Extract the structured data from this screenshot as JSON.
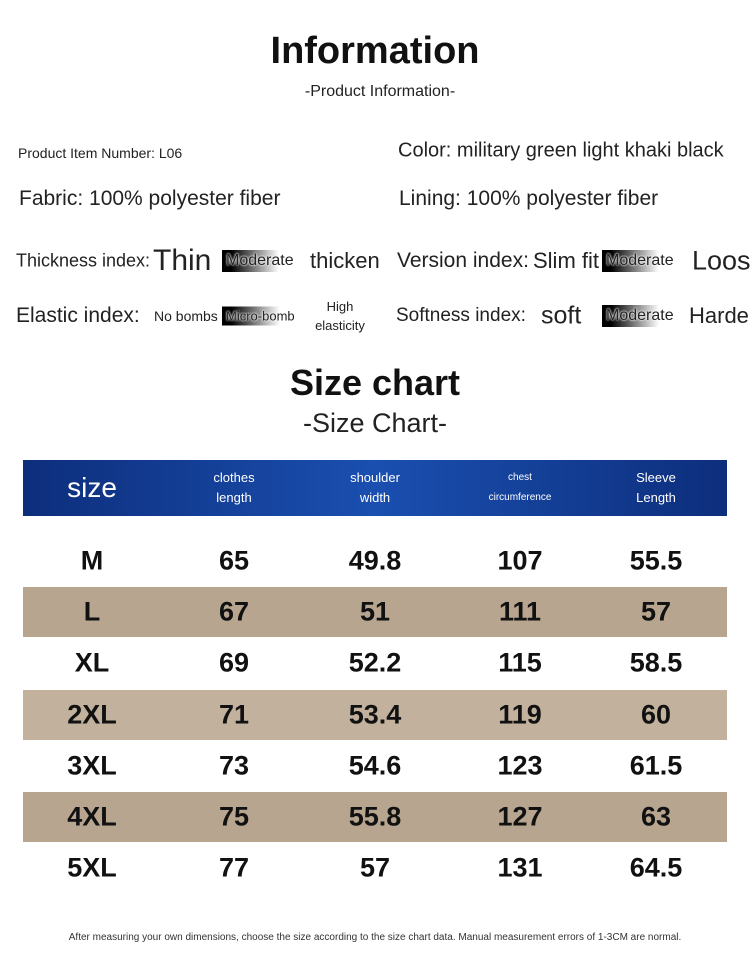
{
  "header": {
    "title": "Information",
    "subtitle": "-Product Information-"
  },
  "details": {
    "item_number": "Product Item Number: L06",
    "color": "Color: military green light khaki black",
    "fabric": "Fabric: 100% polyester fiber",
    "lining": "Lining: 100% polyester fiber"
  },
  "indexes": [
    {
      "label": "Thickness index:",
      "options": [
        "Thin",
        "Moderate",
        "thicken"
      ],
      "selected": 1
    },
    {
      "label": "Version index:",
      "options": [
        "Slim fit",
        "Moderate",
        "Loose"
      ],
      "selected": 1
    },
    {
      "label": "Elastic index:",
      "options": [
        "No bombs",
        "Micro-bomb",
        "High elasticity"
      ],
      "selected": 1
    },
    {
      "label": "Softness index:",
      "options": [
        "soft",
        "Moderate",
        "Harder"
      ],
      "selected": 1
    }
  ],
  "size_chart": {
    "title": "Size chart",
    "subtitle": "-Size Chart-"
  },
  "table": {
    "header": [
      "size",
      "clothes length",
      "shoulder width",
      "chest circumference",
      "Sleeve Length"
    ],
    "rows": [
      [
        "M",
        65,
        49.8,
        107,
        55.5
      ],
      [
        "L",
        67,
        51,
        111,
        57
      ],
      [
        "XL",
        69,
        52.2,
        115,
        58.5
      ],
      [
        "2XL",
        71,
        53.4,
        119,
        60
      ],
      [
        "3XL",
        73,
        54.6,
        123,
        61.5
      ],
      [
        "4XL",
        75,
        55.8,
        127,
        63
      ],
      [
        "5XL",
        77,
        57,
        131,
        64.5
      ]
    ]
  },
  "footer": "After measuring your own dimensions, choose the size according to the size chart data. Manual measurement errors of 1-3CM are normal."
}
